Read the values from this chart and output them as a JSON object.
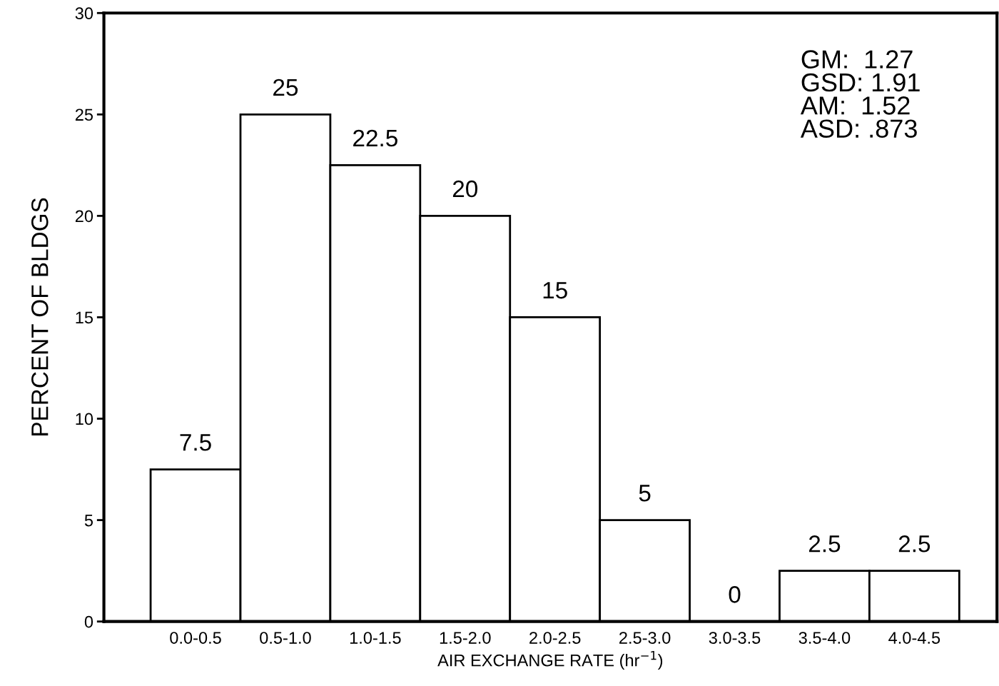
{
  "chart_data": {
    "type": "bar",
    "categories": [
      "0.0-0.5",
      "0.5-1.0",
      "1.0-1.5",
      "1.5-2.0",
      "2.0-2.5",
      "2.5-3.0",
      "3.0-3.5",
      "3.5-4.0",
      "4.0-4.5"
    ],
    "values": [
      7.5,
      25,
      22.5,
      20,
      15,
      5,
      0,
      2.5,
      2.5
    ],
    "color": "#ffffff",
    "data_labels": true,
    "xlabel": "AIR EXCHANGE RATE (hr$^{−1}$)",
    "ylabel": "PERCENT OF BLDGS",
    "ylim": [
      0,
      30
    ],
    "yticks": [
      0,
      5,
      10,
      15,
      20,
      25,
      30
    ],
    "annotations": [
      "GM:  1.27\nGSD: 1.91\nAM:  1.52\nASD: .873"
    ],
    "grid": false,
    "legend": false
  }
}
